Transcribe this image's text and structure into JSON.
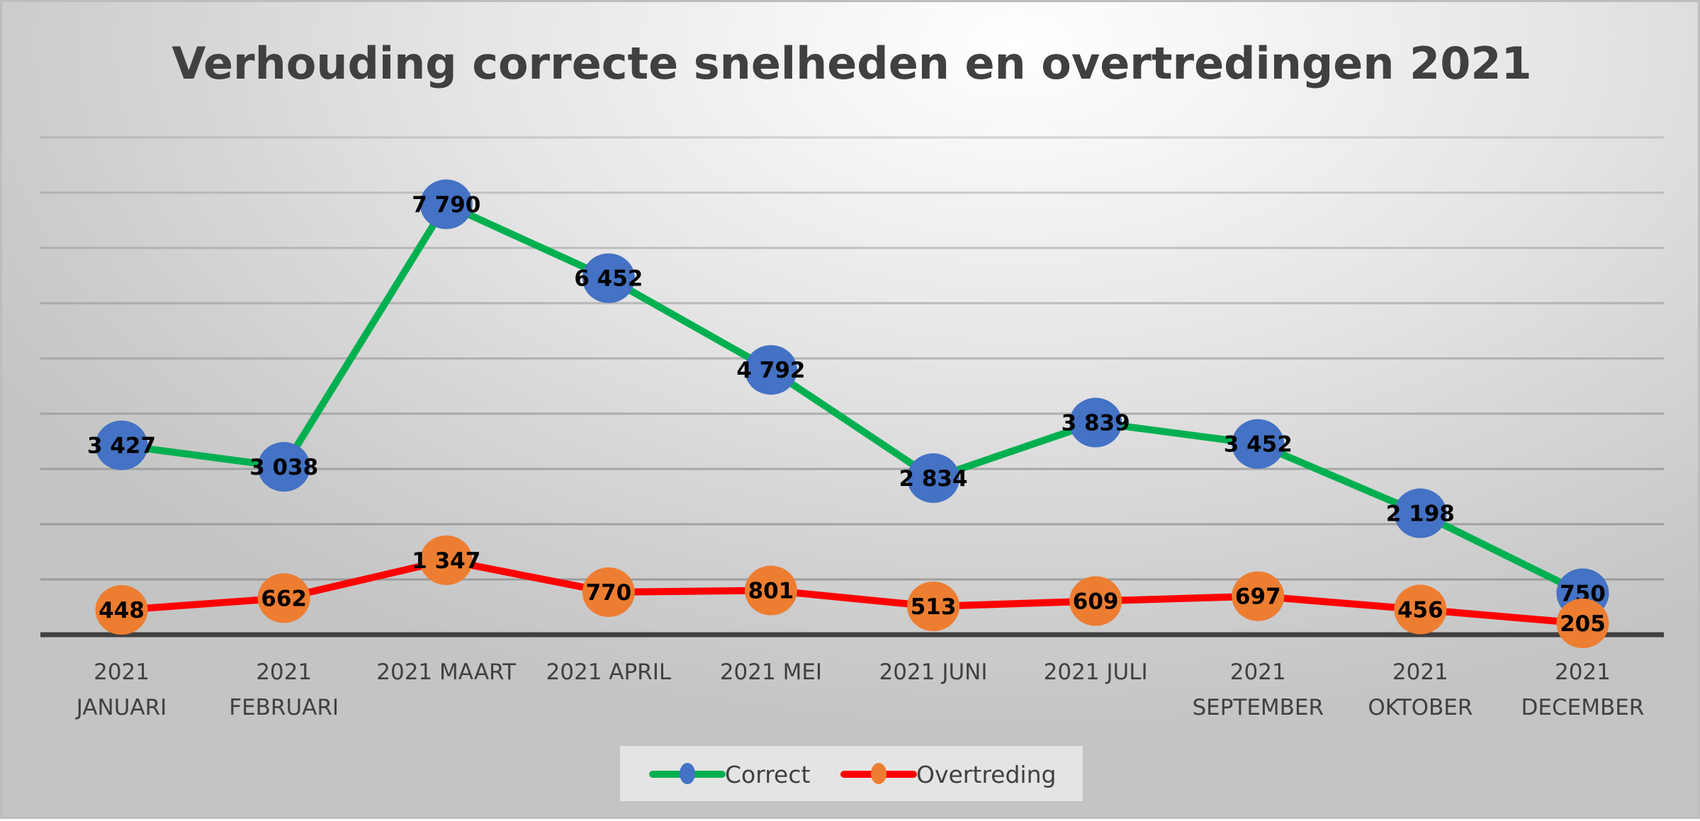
{
  "chart_data": {
    "type": "line",
    "title": "Verhouding correcte snelheden en overtredingen 2021",
    "categories": [
      [
        "2021",
        "JANUARI"
      ],
      [
        "2021",
        "FEBRUARI"
      ],
      [
        "2021 MAART"
      ],
      [
        "2021 APRIL"
      ],
      [
        "2021 MEI"
      ],
      [
        "2021 JUNI"
      ],
      [
        "2021 JULI"
      ],
      [
        "2021",
        "SEPTEMBER"
      ],
      [
        "2021",
        "OKTOBER"
      ],
      [
        "2021",
        "DECEMBER"
      ]
    ],
    "series": [
      {
        "name": "Correct",
        "line_color": "#00b050",
        "marker_color": "#4472c4",
        "values": [
          3427,
          3038,
          7790,
          6452,
          4792,
          2834,
          3839,
          3452,
          2198,
          750
        ],
        "labels": [
          "3 427",
          "3 038",
          "7 790",
          "6 452",
          "4 792",
          "2 834",
          "3 839",
          "3 452",
          "2 198",
          "750"
        ]
      },
      {
        "name": "Overtreding",
        "line_color": "#ff0000",
        "marker_color": "#ed7d31",
        "values": [
          448,
          662,
          1347,
          770,
          801,
          513,
          609,
          697,
          456,
          205
        ],
        "labels": [
          "448",
          "662",
          "1 347",
          "770",
          "801",
          "513",
          "609",
          "697",
          "456",
          "205"
        ]
      }
    ],
    "xlabel": "",
    "ylabel": "",
    "ylim": [
      0,
      9000
    ],
    "y_gridline_step": 1000,
    "grid": true,
    "legend_position": "bottom"
  }
}
